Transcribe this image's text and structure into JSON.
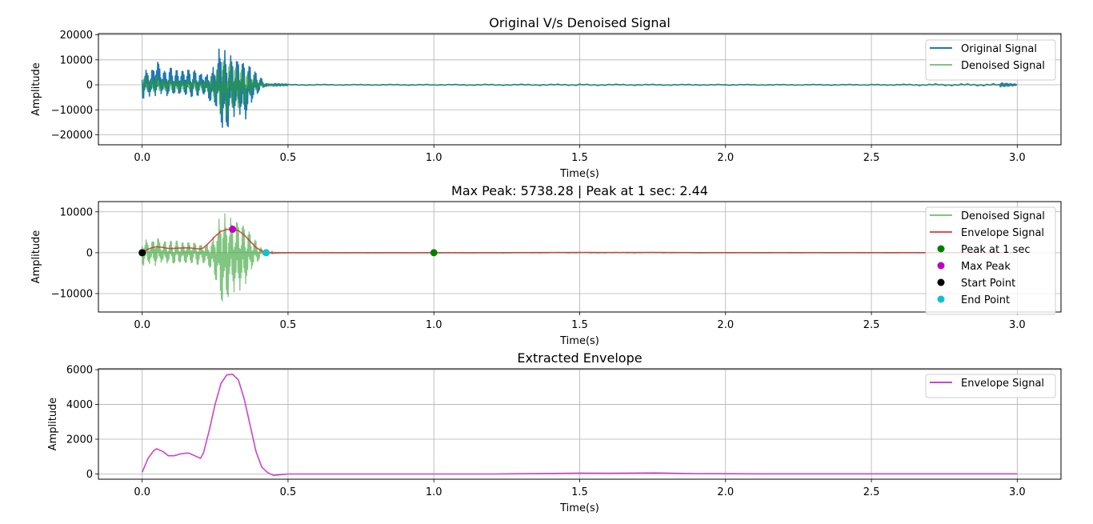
{
  "chart_data": [
    {
      "type": "line",
      "title": "Original V/s Denoised Signal",
      "xlabel": "Time(s)",
      "ylabel": "Amplitude",
      "xlim": [
        -0.15,
        3.15
      ],
      "ylim": [
        -24000,
        20500
      ],
      "xticks": [
        0.0,
        0.5,
        1.0,
        1.5,
        2.0,
        2.5,
        3.0
      ],
      "xtick_labels": [
        "0.0",
        "0.5",
        "1.0",
        "1.5",
        "2.0",
        "2.5",
        "3.0"
      ],
      "yticks": [
        -20000,
        -10000,
        0,
        10000,
        20000
      ],
      "ytick_labels": [
        "−20000",
        "−10000",
        "0",
        "10000",
        "20000"
      ],
      "grid": true,
      "legend": "top-right",
      "series": [
        {
          "name": "Original Signal",
          "color": "#1f77b4",
          "x": [
            0.0,
            0.01,
            0.02,
            0.03,
            0.04,
            0.05,
            0.06,
            0.07,
            0.08,
            0.09,
            0.1,
            0.11,
            0.12,
            0.13,
            0.14,
            0.15,
            0.16,
            0.17,
            0.18,
            0.19,
            0.2,
            0.21,
            0.22,
            0.23,
            0.24,
            0.25,
            0.26,
            0.27,
            0.28,
            0.29,
            0.3,
            0.31,
            0.32,
            0.33,
            0.34,
            0.35,
            0.36,
            0.37,
            0.38,
            0.39,
            0.4,
            0.41,
            0.42,
            0.43,
            0.45,
            0.5,
            1.0,
            1.5,
            2.0,
            2.5,
            2.94,
            3.0
          ],
          "y_max": [
            4500,
            6500,
            5500,
            6000,
            7000,
            11500,
            7500,
            6000,
            5500,
            6500,
            7000,
            5500,
            6000,
            6000,
            5500,
            7000,
            6000,
            5500,
            6000,
            5000,
            4500,
            5500,
            4000,
            5500,
            6500,
            9000,
            12500,
            18500,
            15000,
            12000,
            12500,
            11500,
            10000,
            11000,
            10500,
            9000,
            7000,
            8000,
            6000,
            5000,
            3500,
            2500,
            1000,
            500,
            300,
            200,
            200,
            300,
            200,
            200,
            500,
            200
          ],
          "y_min": [
            -6500,
            -5000,
            -4000,
            -5500,
            -4000,
            -5000,
            -4000,
            -3500,
            -5000,
            -4500,
            -3500,
            -4000,
            -5000,
            -3500,
            -4500,
            -4000,
            -4500,
            -5000,
            -3500,
            -4500,
            -4000,
            -3500,
            -5500,
            -6000,
            -9500,
            -8000,
            -12500,
            -16000,
            -21500,
            -20000,
            -15000,
            -12000,
            -14000,
            -11000,
            -13000,
            -16000,
            -12000,
            -9000,
            -6000,
            -5000,
            -3000,
            -2000,
            -800,
            -500,
            -300,
            -200,
            -200,
            -300,
            -200,
            -200,
            -500,
            -200
          ]
        },
        {
          "name": "Denoised Signal",
          "color": "#2ca02c",
          "x": [
            0.0,
            0.01,
            0.02,
            0.03,
            0.04,
            0.05,
            0.06,
            0.07,
            0.08,
            0.09,
            0.1,
            0.11,
            0.12,
            0.13,
            0.14,
            0.15,
            0.16,
            0.17,
            0.18,
            0.19,
            0.2,
            0.21,
            0.22,
            0.23,
            0.24,
            0.25,
            0.26,
            0.27,
            0.28,
            0.29,
            0.3,
            0.31,
            0.32,
            0.33,
            0.34,
            0.35,
            0.36,
            0.37,
            0.38,
            0.39,
            0.4,
            0.41,
            0.42,
            0.43,
            0.45,
            0.5,
            1.0,
            1.5,
            2.0,
            2.5,
            3.0
          ],
          "y_max": [
            3000,
            3500,
            3000,
            2500,
            3500,
            4500,
            3000,
            2500,
            3000,
            2500,
            3000,
            2500,
            3000,
            2500,
            2500,
            3000,
            2500,
            3000,
            2500,
            2500,
            2000,
            2500,
            2000,
            2500,
            3500,
            5000,
            7000,
            11000,
            10000,
            9000,
            9000,
            8500,
            8000,
            8500,
            7500,
            7000,
            6000,
            5000,
            3500,
            3000,
            2000,
            1000,
            400,
            200,
            100,
            50,
            50,
            100,
            50,
            50,
            50
          ],
          "y_min": [
            -3500,
            -3000,
            -3000,
            -2500,
            -3000,
            -3500,
            -2500,
            -2500,
            -3000,
            -2500,
            -2500,
            -3000,
            -2500,
            -2500,
            -3000,
            -2500,
            -3000,
            -2500,
            -2500,
            -3000,
            -2500,
            -2500,
            -3000,
            -3500,
            -5000,
            -6500,
            -9000,
            -12500,
            -13500,
            -12500,
            -10000,
            -9000,
            -10500,
            -9500,
            -9000,
            -8500,
            -7000,
            -5000,
            -3500,
            -3000,
            -2000,
            -1000,
            -400,
            -200,
            -100,
            -50,
            -50,
            -100,
            -50,
            -50,
            -50
          ]
        }
      ]
    },
    {
      "type": "line",
      "title": "Max Peak: 5738.28 | Peak at 1 sec: 2.44",
      "xlabel": "Time(s)",
      "ylabel": "Amplitude",
      "xlim": [
        -0.15,
        3.15
      ],
      "ylim": [
        -14500,
        12500
      ],
      "xticks": [
        0.0,
        0.5,
        1.0,
        1.5,
        2.0,
        2.5,
        3.0
      ],
      "xtick_labels": [
        "0.0",
        "0.5",
        "1.0",
        "1.5",
        "2.0",
        "2.5",
        "3.0"
      ],
      "yticks": [
        -10000,
        0,
        10000
      ],
      "ytick_labels": [
        "−10000",
        "0",
        "10000"
      ],
      "grid": true,
      "legend": "top-right",
      "series": [
        {
          "name": "Denoised Signal",
          "color": "#2ca02c",
          "x": [
            0.0,
            0.01,
            0.02,
            0.03,
            0.04,
            0.05,
            0.06,
            0.07,
            0.08,
            0.09,
            0.1,
            0.11,
            0.12,
            0.13,
            0.14,
            0.15,
            0.16,
            0.17,
            0.18,
            0.19,
            0.2,
            0.21,
            0.22,
            0.23,
            0.24,
            0.25,
            0.26,
            0.27,
            0.28,
            0.29,
            0.3,
            0.31,
            0.32,
            0.33,
            0.34,
            0.35,
            0.36,
            0.37,
            0.38,
            0.39,
            0.4,
            0.41,
            0.42,
            0.43,
            0.45,
            0.5,
            1.0,
            1.5,
            2.0,
            2.5,
            3.0
          ],
          "y_max": [
            3000,
            3500,
            3000,
            2500,
            3500,
            4500,
            3000,
            2500,
            3000,
            2500,
            3000,
            2500,
            3000,
            2500,
            2500,
            3000,
            2500,
            3000,
            2500,
            2500,
            2000,
            2500,
            2000,
            2500,
            3500,
            5000,
            7000,
            11000,
            10000,
            9000,
            9000,
            8500,
            8000,
            8500,
            7500,
            7000,
            6000,
            5000,
            3500,
            3000,
            2000,
            1000,
            400,
            200,
            100,
            50,
            50,
            100,
            50,
            50,
            50
          ],
          "y_min": [
            -3500,
            -3000,
            -3000,
            -2500,
            -3000,
            -3500,
            -2500,
            -2500,
            -3000,
            -2500,
            -2500,
            -3000,
            -2500,
            -2500,
            -3000,
            -2500,
            -3000,
            -2500,
            -2500,
            -3000,
            -2500,
            -2500,
            -3000,
            -3500,
            -5000,
            -6500,
            -9000,
            -12500,
            -13500,
            -12500,
            -10000,
            -9000,
            -10500,
            -9500,
            -9000,
            -8500,
            -7000,
            -5000,
            -3500,
            -3000,
            -2000,
            -1000,
            -400,
            -200,
            -100,
            -50,
            -50,
            -100,
            -50,
            -50,
            -50
          ]
        },
        {
          "name": "Envelope Signal",
          "color": "#d62728",
          "x": [
            0.0,
            0.02,
            0.04,
            0.05,
            0.07,
            0.09,
            0.11,
            0.13,
            0.15,
            0.16,
            0.18,
            0.2,
            0.21,
            0.23,
            0.25,
            0.27,
            0.29,
            0.31,
            0.33,
            0.35,
            0.37,
            0.39,
            0.41,
            0.43,
            0.45,
            0.47,
            0.5,
            0.7,
            1.0,
            1.2,
            1.4,
            1.5,
            1.6,
            1.76,
            1.9,
            2.1,
            2.4,
            2.7,
            3.0
          ],
          "y": [
            0,
            900,
            1350,
            1450,
            1300,
            1050,
            1050,
            1150,
            1200,
            1200,
            1050,
            900,
            1200,
            2500,
            4000,
            5200,
            5700,
            5738,
            5400,
            4300,
            2800,
            1300,
            400,
            80,
            -80,
            -50,
            0,
            0,
            0,
            0,
            30,
            50,
            40,
            60,
            20,
            10,
            10,
            10,
            10
          ]
        },
        {
          "name": "Peak at 1 sec",
          "color": "#008000",
          "marker": "circle",
          "x": [
            1.0
          ],
          "y": [
            2.44
          ]
        },
        {
          "name": "Max Peak",
          "color": "#bf00bf",
          "marker": "circle",
          "x": [
            0.31
          ],
          "y": [
            5738.28
          ]
        },
        {
          "name": "Start Point",
          "color": "#000000",
          "marker": "circle",
          "x": [
            0.0
          ],
          "y": [
            0
          ]
        },
        {
          "name": "End Point",
          "color": "#17becf",
          "marker": "circle",
          "x": [
            0.425
          ],
          "y": [
            0
          ]
        }
      ]
    },
    {
      "type": "line",
      "title": "Extracted Envelope",
      "xlabel": "Time(s)",
      "ylabel": "Amplitude",
      "xlim": [
        -0.15,
        3.15
      ],
      "ylim": [
        -300,
        6050
      ],
      "xticks": [
        0.0,
        0.5,
        1.0,
        1.5,
        2.0,
        2.5,
        3.0
      ],
      "xtick_labels": [
        "0.0",
        "0.5",
        "1.0",
        "1.5",
        "2.0",
        "2.5",
        "3.0"
      ],
      "yticks": [
        0,
        2000,
        4000,
        6000
      ],
      "ytick_labels": [
        "0",
        "2000",
        "4000",
        "6000"
      ],
      "grid": true,
      "legend": "top-right",
      "series": [
        {
          "name": "Envelope Signal",
          "color": "#cc44cc",
          "x": [
            0.0,
            0.02,
            0.04,
            0.05,
            0.07,
            0.09,
            0.11,
            0.13,
            0.15,
            0.16,
            0.18,
            0.2,
            0.21,
            0.23,
            0.25,
            0.27,
            0.29,
            0.31,
            0.33,
            0.35,
            0.37,
            0.39,
            0.41,
            0.43,
            0.45,
            0.47,
            0.5,
            0.7,
            1.0,
            1.2,
            1.4,
            1.5,
            1.6,
            1.76,
            1.9,
            2.1,
            2.4,
            2.7,
            3.0
          ],
          "y": [
            100,
            900,
            1350,
            1450,
            1300,
            1050,
            1050,
            1150,
            1200,
            1200,
            1050,
            900,
            1200,
            2500,
            4000,
            5200,
            5700,
            5738,
            5400,
            4300,
            2800,
            1300,
            400,
            80,
            -80,
            -50,
            0,
            0,
            0,
            0,
            30,
            50,
            40,
            60,
            20,
            10,
            10,
            10,
            10
          ]
        }
      ]
    }
  ]
}
